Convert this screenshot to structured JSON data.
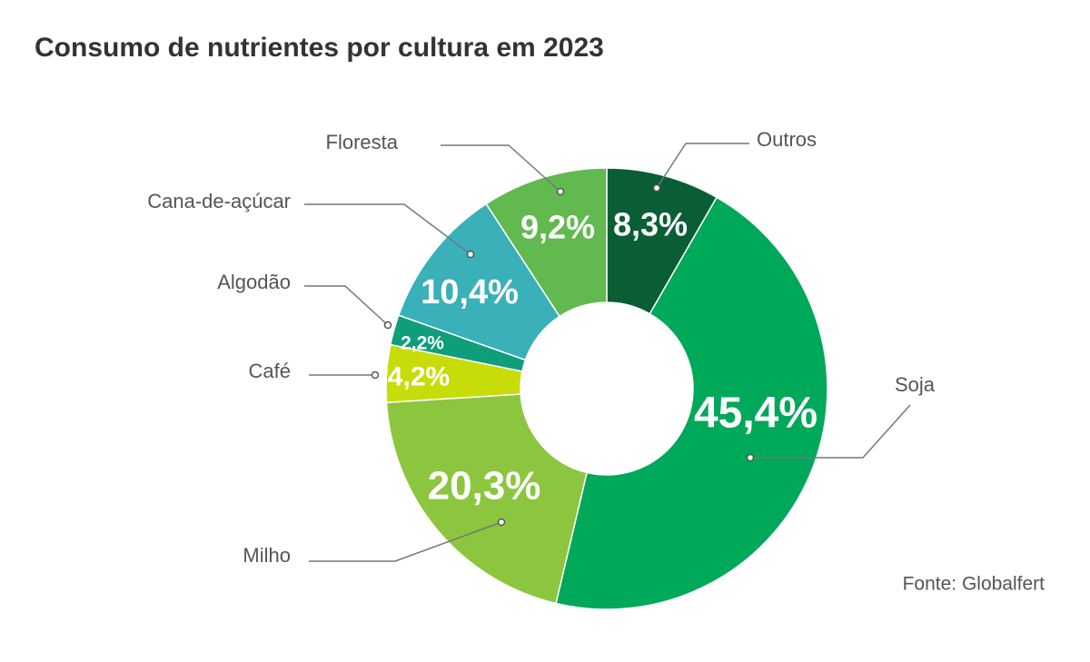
{
  "chart_data": {
    "type": "donut",
    "title": "Consumo de nutrientes por cultura em 2023",
    "categories": [
      "Outros",
      "Soja",
      "Milho",
      "Café",
      "Algodão",
      "Cana-de-açúcar",
      "Floresta"
    ],
    "values": [
      8.3,
      45.4,
      20.3,
      4.2,
      2.2,
      10.4,
      9.2
    ],
    "value_labels": [
      "8,3%",
      "45,4%",
      "20,3%",
      "4,2%",
      "2,2%",
      "10,4%",
      "9,2%"
    ],
    "colors": [
      "#0a5e35",
      "#00a85a",
      "#8cc63f",
      "#c8dc0a",
      "#0e9e7a",
      "#3ab0b8",
      "#62b94f"
    ],
    "source": "Fonte:  Globalfert"
  }
}
